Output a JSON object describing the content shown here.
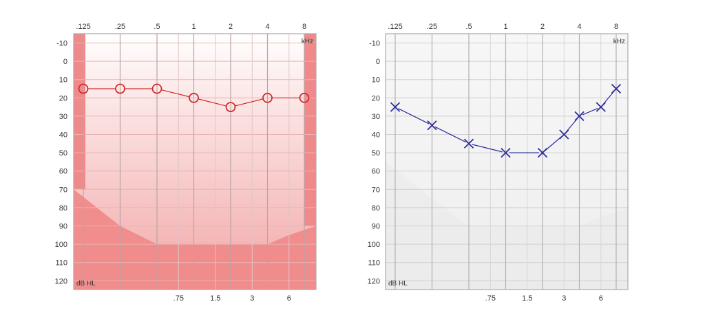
{
  "chart_data": [
    {
      "type": "line",
      "ear": "right",
      "x_scale": "log2",
      "x_ticks_top": [
        ".125",
        ".25",
        ".5",
        "1",
        "2",
        "4",
        "8"
      ],
      "x_ticks_bottom": [
        ".75",
        "1.5",
        "3",
        "6"
      ],
      "x_unit_label": "kHz",
      "y_unit_label": "dB HL",
      "y_ticks": [
        "-10",
        "0",
        "10",
        "20",
        "30",
        "40",
        "50",
        "60",
        "70",
        "80",
        "90",
        "100",
        "110",
        "120"
      ],
      "ylim": [
        -10,
        120
      ],
      "y_inverted": true,
      "grid": true,
      "marker": "circle",
      "series_color": "#d42a2a",
      "band_color": "#f08a8a",
      "series": [
        {
          "name": "",
          "x": [
            0.125,
            0.25,
            0.5,
            1,
            2,
            4,
            8
          ],
          "y": [
            15,
            15,
            15,
            20,
            25,
            20,
            20
          ]
        }
      ],
      "shaded_region": {
        "x": [
          0.125,
          0.25,
          0.5,
          1,
          2,
          4,
          6,
          8
        ],
        "y": [
          70,
          90,
          100,
          100,
          100,
          100,
          95,
          90
        ]
      }
    },
    {
      "type": "line",
      "ear": "left",
      "x_scale": "log2",
      "x_ticks_top": [
        ".125",
        ".25",
        ".5",
        "1",
        "2",
        "4",
        "8"
      ],
      "x_ticks_bottom": [
        ".75",
        "1.5",
        "3",
        "6"
      ],
      "x_unit_label": "kHz",
      "y_unit_label": "dB HL",
      "y_ticks": [
        "-10",
        "0",
        "10",
        "20",
        "30",
        "40",
        "50",
        "60",
        "70",
        "80",
        "90",
        "100",
        "110",
        "120"
      ],
      "ylim": [
        -10,
        120
      ],
      "y_inverted": true,
      "grid": true,
      "marker": "x",
      "series_color": "#2b2b9a",
      "band_color": "#e9e9e9",
      "series": [
        {
          "name": "",
          "x": [
            0.125,
            0.25,
            0.5,
            1,
            2,
            3,
            4,
            6,
            8
          ],
          "y": [
            25,
            35,
            45,
            50,
            50,
            40,
            30,
            25,
            15
          ]
        }
      ],
      "shaded_region": {
        "x": [
          0.125,
          0.25,
          0.5,
          1,
          2,
          4,
          6,
          8
        ],
        "y": [
          55,
          75,
          90,
          90,
          90,
          90,
          85,
          80
        ]
      }
    }
  ]
}
